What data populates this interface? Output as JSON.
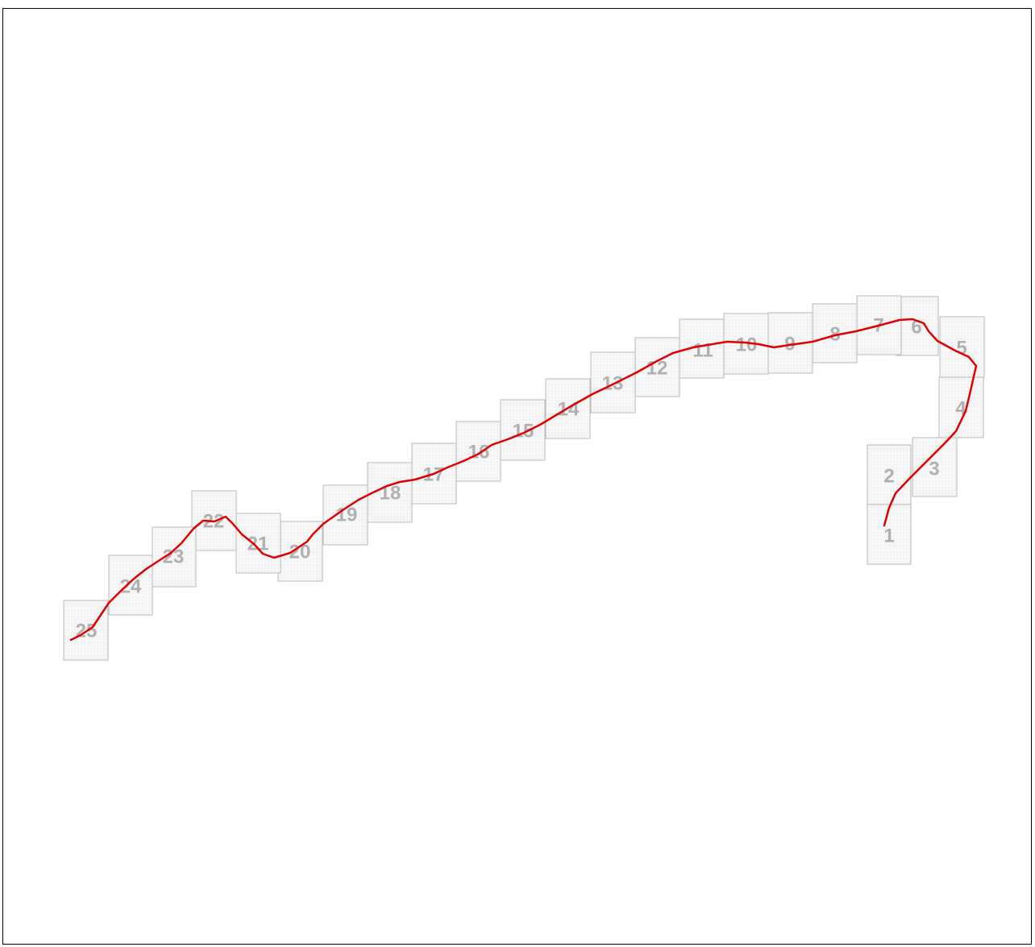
{
  "title": "",
  "colors": {
    "track": "#e00000",
    "tile_border": "#b8b8b8",
    "tile_fill": "#f5f5f5",
    "label": "#b0b0b0",
    "frame": "#000000"
  },
  "tiles": [
    {
      "label": "1"
    },
    {
      "label": "2"
    },
    {
      "label": "3"
    },
    {
      "label": "4"
    },
    {
      "label": "5"
    },
    {
      "label": "6"
    },
    {
      "label": "7"
    },
    {
      "label": "8"
    },
    {
      "label": "9"
    },
    {
      "label": "10"
    },
    {
      "label": "11"
    },
    {
      "label": "12"
    },
    {
      "label": "13"
    },
    {
      "label": "14"
    },
    {
      "label": "15"
    },
    {
      "label": "16"
    },
    {
      "label": "17"
    },
    {
      "label": "18"
    },
    {
      "label": "19"
    },
    {
      "label": "20"
    },
    {
      "label": "21"
    },
    {
      "label": "22"
    },
    {
      "label": "23"
    },
    {
      "label": "24"
    },
    {
      "label": "25"
    }
  ]
}
